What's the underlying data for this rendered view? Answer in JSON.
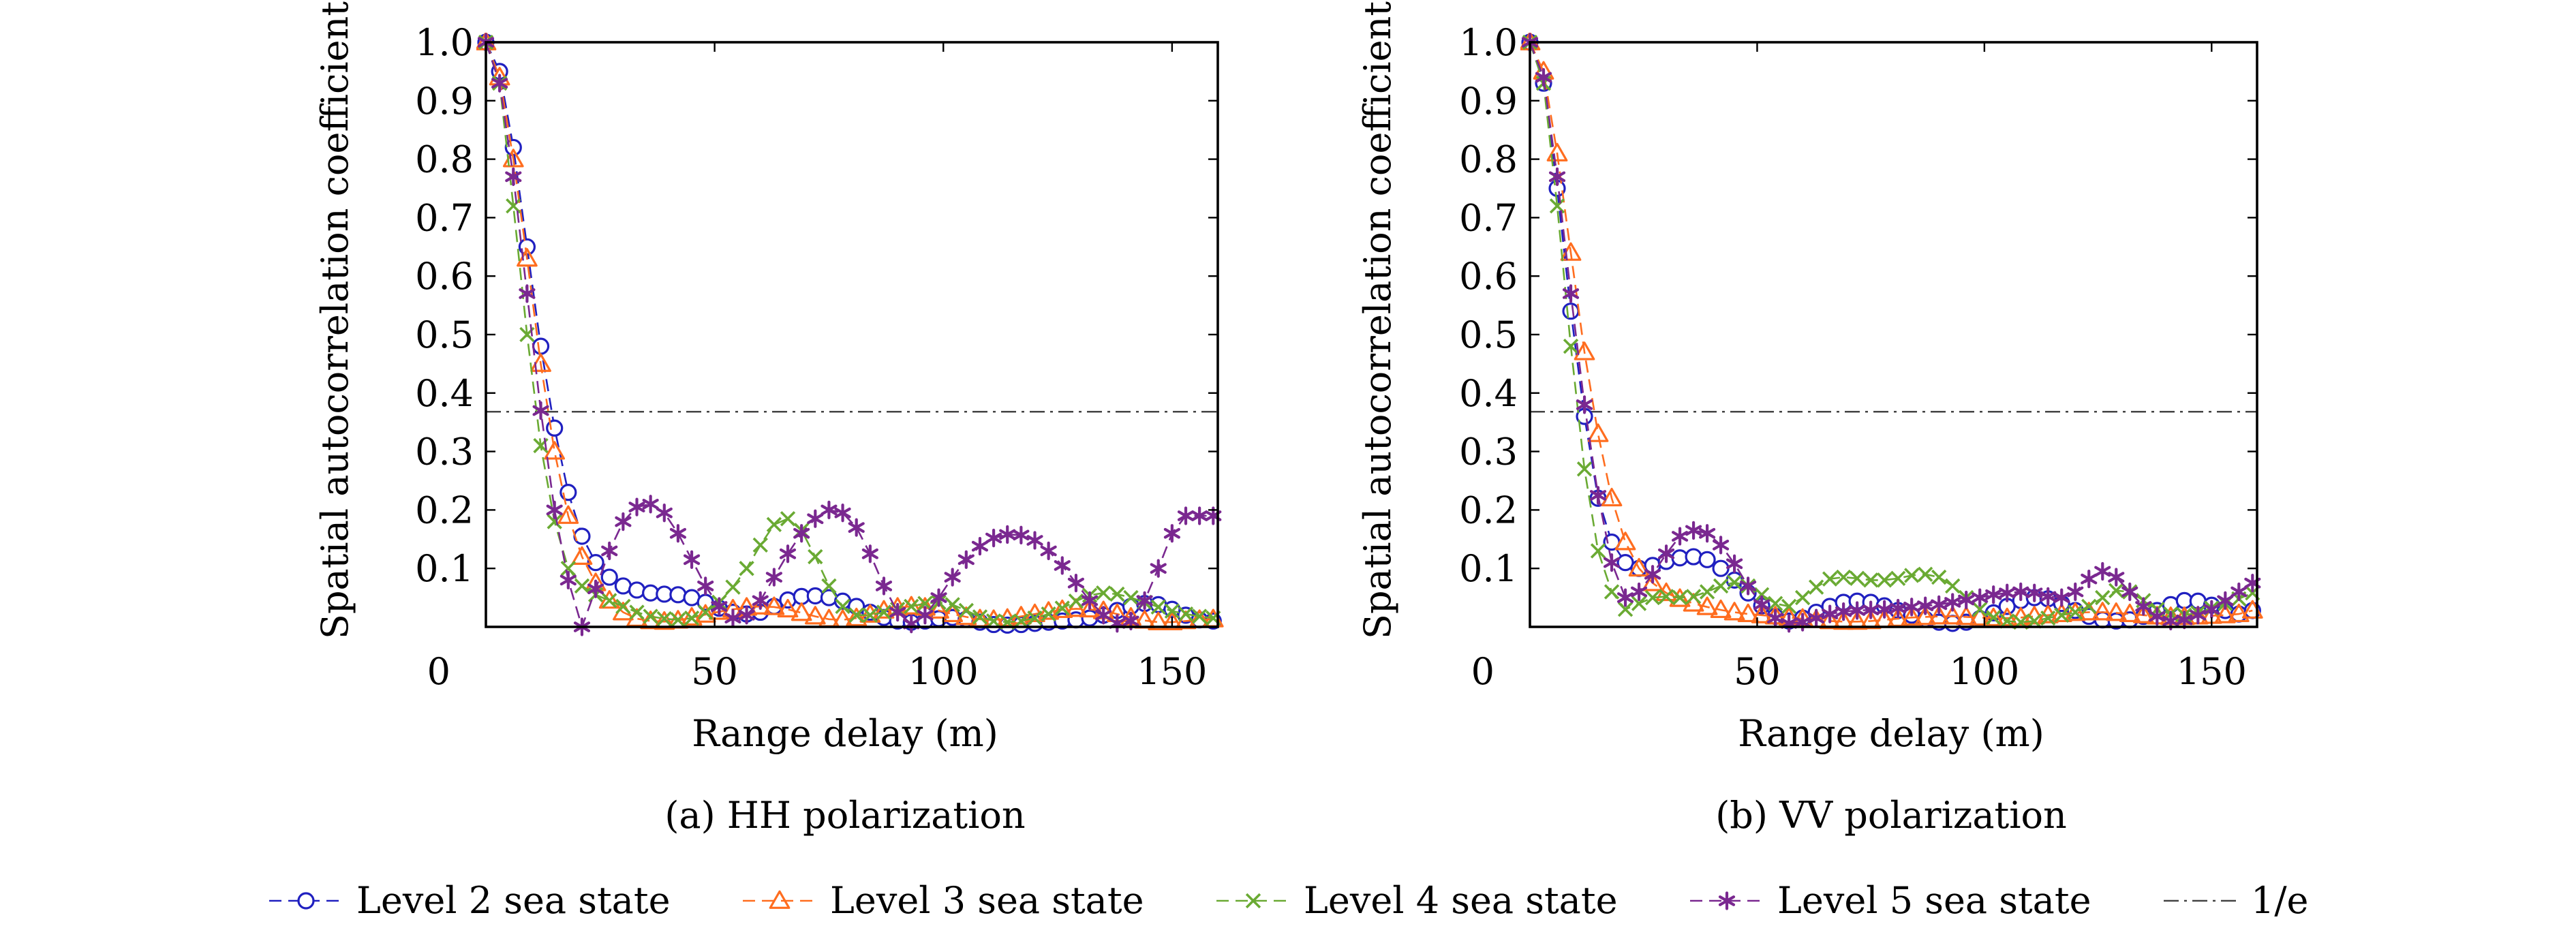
{
  "colors": {
    "level2": "#2020c0",
    "level3": "#ff6d1f",
    "level4": "#6aaa33",
    "level5": "#7a2890",
    "inv_e": "#444444",
    "axis": "#000000"
  },
  "legend": [
    {
      "label": "Level 2 sea state",
      "key": "level2",
      "marker": "circle",
      "dash": "dashed"
    },
    {
      "label": "Level 3 sea state",
      "key": "level3",
      "marker": "triangle",
      "dash": "dashed"
    },
    {
      "label": "Level 4 sea state",
      "key": "level4",
      "marker": "x",
      "dash": "dashed"
    },
    {
      "label": "Level 5 sea state",
      "key": "level5",
      "marker": "star",
      "dash": "dashed"
    },
    {
      "label": "1/e",
      "key": "inv_e",
      "marker": "none",
      "dash": "dashdot"
    }
  ],
  "chart_data": [
    {
      "type": "line",
      "caption": "(a) HH polarization",
      "xlabel": "Range delay (m)",
      "ylabel": "Spatial autocorrelation coefficient",
      "xlim": [
        0,
        160
      ],
      "ylim": [
        0,
        1.0
      ],
      "xticks": [
        0,
        50,
        100,
        150
      ],
      "yticks": [
        0.1,
        0.2,
        0.3,
        0.4,
        0.5,
        0.6,
        0.7,
        0.8,
        0.9,
        1.0
      ],
      "ytick_labels": [
        "0.1",
        "0.2",
        "0.3",
        "0.4",
        "0.5",
        "0.6",
        "0.7",
        "0.8",
        "0.9",
        "1.0"
      ],
      "xtick_labels": [
        "0",
        "50",
        "100",
        "150"
      ],
      "grid": false,
      "legend_position": "bottom",
      "reference_line": {
        "name": "1/e",
        "y": 0.368
      },
      "x": [
        0,
        3,
        6,
        9,
        12,
        15,
        18,
        21,
        24,
        27,
        30,
        33,
        36,
        39,
        42,
        45,
        48,
        51,
        54,
        57,
        60,
        63,
        66,
        69,
        72,
        75,
        78,
        81,
        84,
        87,
        90,
        93,
        96,
        99,
        102,
        105,
        108,
        111,
        114,
        117,
        120,
        123,
        126,
        129,
        132,
        135,
        138,
        141,
        144,
        147,
        150,
        153,
        156,
        159
      ],
      "series": [
        {
          "name": "Level 2 sea state",
          "key": "level2",
          "values": [
            1.0,
            0.95,
            0.82,
            0.65,
            0.48,
            0.34,
            0.23,
            0.155,
            0.11,
            0.085,
            0.07,
            0.063,
            0.058,
            0.056,
            0.055,
            0.05,
            0.042,
            0.032,
            0.025,
            0.022,
            0.025,
            0.035,
            0.046,
            0.052,
            0.053,
            0.05,
            0.044,
            0.035,
            0.025,
            0.016,
            0.01,
            0.008,
            0.01,
            0.014,
            0.016,
            0.013,
            0.008,
            0.004,
            0.003,
            0.004,
            0.006,
            0.008,
            0.01,
            0.012,
            0.015,
            0.02,
            0.028,
            0.035,
            0.04,
            0.038,
            0.03,
            0.02,
            0.012,
            0.01
          ]
        },
        {
          "name": "Level 3 sea state",
          "key": "level3",
          "values": [
            1.0,
            0.94,
            0.8,
            0.63,
            0.45,
            0.3,
            0.19,
            0.12,
            0.075,
            0.045,
            0.025,
            0.014,
            0.01,
            0.009,
            0.011,
            0.016,
            0.021,
            0.026,
            0.03,
            0.033,
            0.035,
            0.034,
            0.03,
            0.024,
            0.018,
            0.013,
            0.012,
            0.015,
            0.021,
            0.028,
            0.033,
            0.035,
            0.033,
            0.028,
            0.022,
            0.017,
            0.013,
            0.012,
            0.014,
            0.018,
            0.022,
            0.026,
            0.029,
            0.031,
            0.03,
            0.027,
            0.022,
            0.016,
            0.011,
            0.008,
            0.008,
            0.01,
            0.012,
            0.013
          ]
        },
        {
          "name": "Level 4 sea state",
          "key": "level4",
          "values": [
            1.0,
            0.93,
            0.72,
            0.5,
            0.31,
            0.18,
            0.1,
            0.07,
            0.055,
            0.045,
            0.035,
            0.025,
            0.018,
            0.014,
            0.012,
            0.015,
            0.025,
            0.042,
            0.068,
            0.1,
            0.14,
            0.175,
            0.185,
            0.165,
            0.12,
            0.07,
            0.035,
            0.02,
            0.02,
            0.025,
            0.03,
            0.035,
            0.04,
            0.042,
            0.038,
            0.028,
            0.017,
            0.01,
            0.008,
            0.01,
            0.015,
            0.022,
            0.032,
            0.044,
            0.054,
            0.058,
            0.056,
            0.05,
            0.042,
            0.034,
            0.027,
            0.022,
            0.018,
            0.015
          ]
        },
        {
          "name": "Level 5 sea state",
          "key": "level5",
          "values": [
            1.0,
            0.93,
            0.77,
            0.57,
            0.37,
            0.2,
            0.08,
            0.0,
            0.065,
            0.13,
            0.18,
            0.205,
            0.21,
            0.195,
            0.16,
            0.115,
            0.07,
            0.035,
            0.015,
            0.02,
            0.045,
            0.085,
            0.125,
            0.16,
            0.185,
            0.2,
            0.195,
            0.17,
            0.125,
            0.07,
            0.025,
            0.005,
            0.02,
            0.05,
            0.085,
            0.115,
            0.138,
            0.152,
            0.158,
            0.157,
            0.148,
            0.13,
            0.105,
            0.075,
            0.045,
            0.02,
            0.006,
            0.01,
            0.045,
            0.1,
            0.16,
            0.19,
            0.19,
            0.19
          ]
        }
      ]
    },
    {
      "type": "line",
      "caption": "(b) VV polarization",
      "xlabel": "Range delay (m)",
      "ylabel": "Spatial autocorrelation coefficient",
      "xlim": [
        0,
        160
      ],
      "ylim": [
        0,
        1.0
      ],
      "xticks": [
        0,
        50,
        100,
        150
      ],
      "yticks": [
        0.1,
        0.2,
        0.3,
        0.4,
        0.5,
        0.6,
        0.7,
        0.8,
        0.9,
        1.0
      ],
      "ytick_labels": [
        "0.1",
        "0.2",
        "0.3",
        "0.4",
        "0.5",
        "0.6",
        "0.7",
        "0.8",
        "0.9",
        "1.0"
      ],
      "xtick_labels": [
        "0",
        "50",
        "100",
        "150"
      ],
      "grid": false,
      "legend_position": "bottom",
      "reference_line": {
        "name": "1/e",
        "y": 0.368
      },
      "x": [
        0,
        3,
        6,
        9,
        12,
        15,
        18,
        21,
        24,
        27,
        30,
        33,
        36,
        39,
        42,
        45,
        48,
        51,
        54,
        57,
        60,
        63,
        66,
        69,
        72,
        75,
        78,
        81,
        84,
        87,
        90,
        93,
        96,
        99,
        102,
        105,
        108,
        111,
        114,
        117,
        120,
        123,
        126,
        129,
        132,
        135,
        138,
        141,
        144,
        147,
        150,
        153,
        156,
        159
      ],
      "series": [
        {
          "name": "Level 2 sea state",
          "key": "level2",
          "values": [
            1.0,
            0.93,
            0.75,
            0.54,
            0.36,
            0.22,
            0.145,
            0.11,
            0.1,
            0.105,
            0.112,
            0.118,
            0.12,
            0.115,
            0.1,
            0.08,
            0.058,
            0.036,
            0.018,
            0.01,
            0.015,
            0.025,
            0.035,
            0.042,
            0.044,
            0.042,
            0.036,
            0.028,
            0.02,
            0.013,
            0.008,
            0.006,
            0.008,
            0.014,
            0.024,
            0.035,
            0.045,
            0.05,
            0.048,
            0.04,
            0.028,
            0.018,
            0.012,
            0.01,
            0.012,
            0.018,
            0.028,
            0.038,
            0.045,
            0.044,
            0.037,
            0.028,
            0.022,
            0.028
          ]
        },
        {
          "name": "Level 3 sea state",
          "key": "level3",
          "values": [
            1.0,
            0.95,
            0.81,
            0.64,
            0.47,
            0.33,
            0.22,
            0.145,
            0.1,
            0.075,
            0.058,
            0.048,
            0.04,
            0.034,
            0.029,
            0.025,
            0.022,
            0.02,
            0.018,
            0.016,
            0.014,
            0.012,
            0.01,
            0.009,
            0.009,
            0.01,
            0.012,
            0.014,
            0.016,
            0.017,
            0.018,
            0.018,
            0.017,
            0.016,
            0.015,
            0.015,
            0.016,
            0.018,
            0.02,
            0.022,
            0.024,
            0.025,
            0.025,
            0.024,
            0.022,
            0.02,
            0.018,
            0.017,
            0.017,
            0.018,
            0.019,
            0.02,
            0.022,
            0.028
          ]
        },
        {
          "name": "Level 4 sea state",
          "key": "level4",
          "values": [
            1.0,
            0.93,
            0.72,
            0.48,
            0.27,
            0.13,
            0.06,
            0.03,
            0.04,
            0.05,
            0.052,
            0.05,
            0.052,
            0.06,
            0.07,
            0.076,
            0.07,
            0.055,
            0.04,
            0.035,
            0.05,
            0.068,
            0.082,
            0.085,
            0.083,
            0.08,
            0.08,
            0.083,
            0.088,
            0.09,
            0.085,
            0.07,
            0.05,
            0.03,
            0.016,
            0.01,
            0.008,
            0.01,
            0.015,
            0.02,
            0.025,
            0.035,
            0.05,
            0.062,
            0.06,
            0.045,
            0.03,
            0.022,
            0.02,
            0.024,
            0.032,
            0.04,
            0.048,
            0.058
          ]
        },
        {
          "name": "Level 5 sea state",
          "key": "level5",
          "values": [
            1.0,
            0.94,
            0.77,
            0.57,
            0.38,
            0.225,
            0.11,
            0.05,
            0.06,
            0.09,
            0.125,
            0.155,
            0.165,
            0.16,
            0.14,
            0.108,
            0.07,
            0.038,
            0.015,
            0.006,
            0.008,
            0.015,
            0.022,
            0.026,
            0.028,
            0.029,
            0.03,
            0.032,
            0.034,
            0.036,
            0.038,
            0.042,
            0.046,
            0.05,
            0.055,
            0.058,
            0.06,
            0.058,
            0.052,
            0.05,
            0.06,
            0.082,
            0.095,
            0.085,
            0.06,
            0.035,
            0.018,
            0.01,
            0.012,
            0.02,
            0.03,
            0.045,
            0.06,
            0.075
          ]
        }
      ]
    }
  ]
}
